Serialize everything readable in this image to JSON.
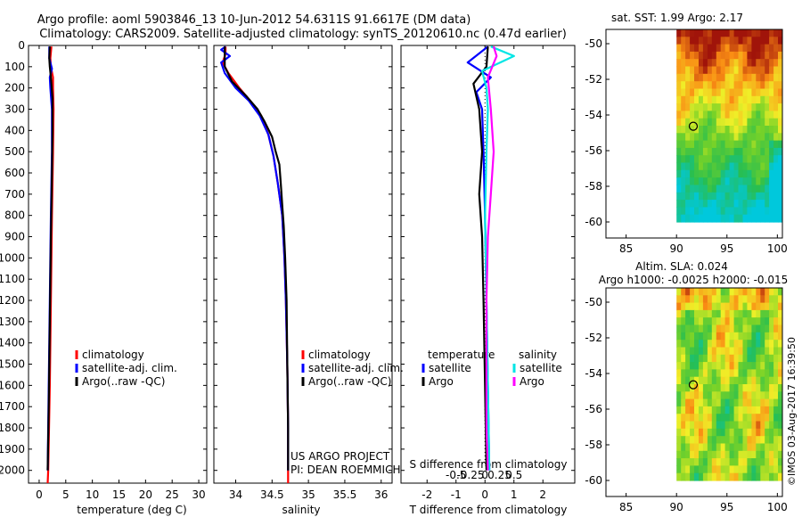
{
  "header": {
    "line1": "Argo profile: aoml 5903846_13 10-Jun-2012 54.6311S 91.6617E (DM data)",
    "line2": "Climatology: CARS2009. Satellite-adjusted climatology: synTS_20120610.nc (0.47d earlier)"
  },
  "credit": {
    "project": "US ARGO PROJECT",
    "pi": "PI: DEAN ROEMMICH"
  },
  "watermark": "©IMOS 03-Aug-2017 16:39:50",
  "colors": {
    "climatology": "#ff0000",
    "satellite": "#0000ff",
    "argo": "#000000",
    "salinity_satellite": "#00e5e5",
    "salinity_argo": "#ff00ff"
  },
  "chart_data": [
    {
      "id": "temperature",
      "type": "line",
      "xlabel": "temperature (deg C)",
      "xlim": [
        -2,
        31.5
      ],
      "ylim": [
        0,
        2060
      ],
      "yticks": [
        0,
        100,
        200,
        300,
        400,
        500,
        600,
        700,
        800,
        900,
        1000,
        1100,
        1200,
        1300,
        1400,
        1500,
        1600,
        1700,
        1800,
        1900,
        2000
      ],
      "xticks": [
        {
          "v": 0,
          "label": "0"
        },
        {
          "v": 5,
          "label": "5"
        },
        {
          "v": 10,
          "label": "10"
        },
        {
          "v": 15,
          "label": "15"
        },
        {
          "v": 20,
          "label": "20"
        },
        {
          "v": 25,
          "label": "25"
        },
        {
          "v": 30,
          "label": "30"
        }
      ],
      "legend": [
        "climatology",
        "satellite-adj. clim.",
        "Argo(..raw -QC)"
      ],
      "series": [
        {
          "name": "climatology",
          "color": "#ff0000",
          "points": [
            [
              2.3,
              5
            ],
            [
              2.1,
              60
            ],
            [
              2.2,
              100
            ],
            [
              2.6,
              150
            ],
            [
              2.6,
              200
            ],
            [
              2.7,
              300
            ],
            [
              2.6,
              500
            ],
            [
              2.4,
              800
            ],
            [
              2.2,
              1200
            ],
            [
              2.0,
              1600
            ],
            [
              1.7,
              2000
            ],
            [
              1.6,
              2060
            ]
          ]
        },
        {
          "name": "satellite-adj. clim.",
          "color": "#0000ff",
          "points": [
            [
              1.9,
              5
            ],
            [
              1.9,
              60
            ],
            [
              2.4,
              110
            ],
            [
              2.0,
              150
            ],
            [
              2.1,
              200
            ],
            [
              2.4,
              300
            ],
            [
              2.4,
              500
            ],
            [
              2.2,
              800
            ],
            [
              2.0,
              1200
            ],
            [
              1.8,
              1600
            ],
            [
              1.6,
              2000
            ]
          ]
        },
        {
          "name": "Argo(..raw -QC)",
          "color": "#000000",
          "points": [
            [
              2.0,
              5
            ],
            [
              1.9,
              60
            ],
            [
              2.0,
              100
            ],
            [
              2.2,
              150
            ],
            [
              2.5,
              250
            ],
            [
              2.5,
              400
            ],
            [
              2.4,
              600
            ],
            [
              2.2,
              900
            ],
            [
              2.0,
              1300
            ],
            [
              1.8,
              1700
            ],
            [
              1.6,
              2000
            ]
          ]
        }
      ]
    },
    {
      "id": "salinity",
      "type": "line",
      "xlabel": "salinity",
      "xlim": [
        33.7,
        36.15
      ],
      "ylim": [
        0,
        2060
      ],
      "xticks": [
        {
          "v": 34,
          "label": "34"
        },
        {
          "v": 34.5,
          "label": "34.5"
        },
        {
          "v": 35,
          "label": "35"
        },
        {
          "v": 35.5,
          "label": "35.5"
        },
        {
          "v": 36,
          "label": "36"
        }
      ],
      "legend": [
        "climatology",
        "satellite-adj. clim.",
        "Argo(..raw -QC)"
      ],
      "series": [
        {
          "name": "climatology",
          "color": "#ff0000",
          "points": [
            [
              33.86,
              5
            ],
            [
              33.86,
              40
            ],
            [
              33.82,
              80
            ],
            [
              33.9,
              130
            ],
            [
              34.05,
              200
            ],
            [
              34.2,
              260
            ],
            [
              34.35,
              330
            ],
            [
              34.45,
              420
            ],
            [
              34.52,
              520
            ],
            [
              34.58,
              650
            ],
            [
              34.64,
              800
            ],
            [
              34.67,
              1000
            ],
            [
              34.69,
              1200
            ],
            [
              34.71,
              1500
            ],
            [
              34.72,
              1800
            ],
            [
              34.72,
              2060
            ]
          ]
        },
        {
          "name": "satellite-adj. clim.",
          "color": "#0000ff",
          "points": [
            [
              33.86,
              5
            ],
            [
              33.8,
              20
            ],
            [
              33.92,
              50
            ],
            [
              33.8,
              80
            ],
            [
              33.85,
              130
            ],
            [
              34.0,
              200
            ],
            [
              34.18,
              260
            ],
            [
              34.33,
              330
            ],
            [
              34.45,
              420
            ],
            [
              34.52,
              520
            ],
            [
              34.58,
              650
            ],
            [
              34.64,
              800
            ],
            [
              34.67,
              1000
            ],
            [
              34.69,
              1200
            ],
            [
              34.71,
              1500
            ],
            [
              34.72,
              1800
            ],
            [
              34.72,
              2000
            ]
          ]
        },
        {
          "name": "Argo(..raw -QC)",
          "color": "#000000",
          "points": [
            [
              33.85,
              5
            ],
            [
              33.85,
              50
            ],
            [
              33.85,
              100
            ],
            [
              33.95,
              170
            ],
            [
              34.15,
              240
            ],
            [
              34.3,
              300
            ],
            [
              34.4,
              360
            ],
            [
              34.5,
              430
            ],
            [
              34.55,
              500
            ],
            [
              34.6,
              560
            ],
            [
              34.62,
              650
            ],
            [
              34.64,
              750
            ],
            [
              34.66,
              850
            ],
            [
              34.68,
              1000
            ],
            [
              34.7,
              1200
            ],
            [
              34.71,
              1500
            ],
            [
              34.72,
              1800
            ],
            [
              34.72,
              2000
            ]
          ]
        }
      ]
    },
    {
      "id": "difference",
      "type": "line",
      "xlabel": "T difference from climatology",
      "xlabel_top": "S difference from climatology",
      "xlim": [
        -2.9,
        3.1
      ],
      "ylim": [
        0,
        2060
      ],
      "xticks": [
        {
          "v": -2,
          "label": "-2"
        },
        {
          "v": -1,
          "label": "-1"
        },
        {
          "v": 0,
          "label": "0"
        },
        {
          "v": 1,
          "label": "1"
        },
        {
          "v": 2,
          "label": "2"
        }
      ],
      "xticks_top": [
        {
          "v": -1,
          "label": "-0.5"
        },
        {
          "v": -0.5,
          "label": "-0.25"
        },
        {
          "v": 0,
          "label": "0"
        },
        {
          "v": 0.5,
          "label": "0.25"
        },
        {
          "v": 1,
          "label": "0.5"
        }
      ],
      "legend_titles": [
        "temperature",
        "salinity"
      ],
      "legend_left": [
        "satellite",
        "Argo"
      ],
      "legend_right": [
        "satellite",
        "Argo"
      ],
      "series": [
        {
          "name": "temperature satellite",
          "color": "#0000ff",
          "points": [
            [
              0.1,
              5
            ],
            [
              -0.6,
              80
            ],
            [
              0.2,
              150
            ],
            [
              -0.3,
              220
            ],
            [
              -0.1,
              300
            ],
            [
              -0.05,
              500
            ],
            [
              0,
              800
            ],
            [
              0.05,
              1200
            ],
            [
              0.1,
              1600
            ],
            [
              0.15,
              2000
            ]
          ]
        },
        {
          "name": "temperature Argo",
          "color": "#000000",
          "points": [
            [
              0.1,
              5
            ],
            [
              0.05,
              100
            ],
            [
              -0.4,
              180
            ],
            [
              -0.2,
              300
            ],
            [
              -0.1,
              500
            ],
            [
              -0.2,
              700
            ],
            [
              -0.1,
              900
            ],
            [
              -0.05,
              1200
            ],
            [
              0,
              1600
            ],
            [
              0.05,
              2000
            ]
          ]
        },
        {
          "name": "salinity satellite",
          "color": "#00e5e5",
          "points": [
            [
              0.2,
              5
            ],
            [
              1.0,
              50
            ],
            [
              -0.1,
              120
            ],
            [
              0.05,
              200
            ],
            [
              0.1,
              300
            ],
            [
              0.05,
              500
            ],
            [
              0,
              800
            ],
            [
              0.05,
              1200
            ],
            [
              0.1,
              1600
            ],
            [
              0.15,
              2000
            ]
          ]
        },
        {
          "name": "salinity Argo",
          "color": "#ff00ff",
          "points": [
            [
              0.3,
              5
            ],
            [
              0.4,
              50
            ],
            [
              0.1,
              150
            ],
            [
              0.2,
              300
            ],
            [
              0.3,
              500
            ],
            [
              0.2,
              700
            ],
            [
              0.1,
              900
            ],
            [
              0.05,
              1200
            ],
            [
              0.05,
              1500
            ],
            [
              0.05,
              1800
            ],
            [
              0.1,
              2000
            ]
          ]
        }
      ]
    },
    {
      "id": "sst_map",
      "type": "heatmap",
      "title": "sat. SST: 1.99 Argo: 2.17",
      "xlim": [
        83,
        100.5
      ],
      "ylim": [
        -60.9,
        -49.2
      ],
      "xticks": [
        {
          "v": 85,
          "label": "85"
        },
        {
          "v": 90,
          "label": "90"
        },
        {
          "v": 95,
          "label": "95"
        },
        {
          "v": 100,
          "label": "100"
        }
      ],
      "yticks": [
        {
          "v": -50,
          "label": "-50"
        },
        {
          "v": -52,
          "label": "-52"
        },
        {
          "v": -54,
          "label": "-54"
        },
        {
          "v": -56,
          "label": "-56"
        },
        {
          "v": -58,
          "label": "-58"
        },
        {
          "v": -60,
          "label": "-60"
        }
      ],
      "data_extent": {
        "lon": [
          90,
          100.5
        ],
        "lat": [
          -60,
          -49.2
        ]
      },
      "float_position": {
        "lon": 91.66,
        "lat": -54.63
      }
    },
    {
      "id": "sla_map",
      "type": "heatmap",
      "title_line1": "Altim. SLA: 0.024",
      "title_line2": "Argo h1000: -0.0025 h2000: -0.015",
      "xlim": [
        83,
        100.5
      ],
      "ylim": [
        -60.9,
        -49.2
      ],
      "xticks": [
        {
          "v": 85,
          "label": "85"
        },
        {
          "v": 90,
          "label": "90"
        },
        {
          "v": 95,
          "label": "95"
        },
        {
          "v": 100,
          "label": "100"
        }
      ],
      "yticks": [
        {
          "v": -50,
          "label": "-50"
        },
        {
          "v": -52,
          "label": "-52"
        },
        {
          "v": -54,
          "label": "-54"
        },
        {
          "v": -56,
          "label": "-56"
        },
        {
          "v": -58,
          "label": "-58"
        },
        {
          "v": -60,
          "label": "-60"
        }
      ],
      "data_extent": {
        "lon": [
          90,
          100.5
        ],
        "lat": [
          -60,
          -49.2
        ]
      },
      "float_position": {
        "lon": 91.66,
        "lat": -54.63
      }
    }
  ]
}
